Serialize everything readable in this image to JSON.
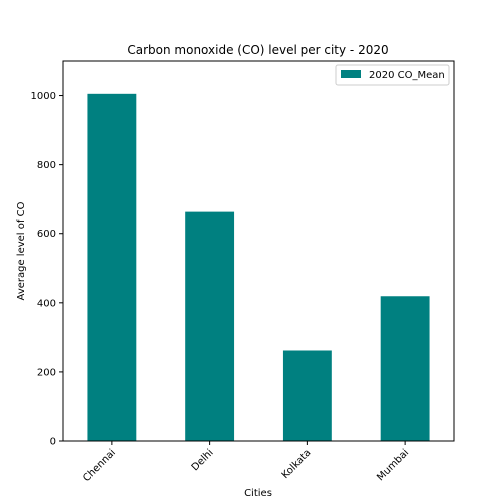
{
  "chart_data": {
    "type": "bar",
    "title": "Carbon monoxide (CO) level per city - 2020",
    "xlabel": "Cities",
    "ylabel": "Average level of CO",
    "categories": [
      "Chennai",
      "Delhi",
      "Kolkata",
      "Mumbai"
    ],
    "series": [
      {
        "name": "2020 CO_Mean",
        "values": [
          1005,
          664,
          262,
          419
        ]
      }
    ],
    "ylim": [
      0,
      1100
    ],
    "yticks": [
      0,
      200,
      400,
      600,
      800,
      1000
    ],
    "bar_color": "#008080",
    "grid": false,
    "legend_position": "top-right"
  }
}
